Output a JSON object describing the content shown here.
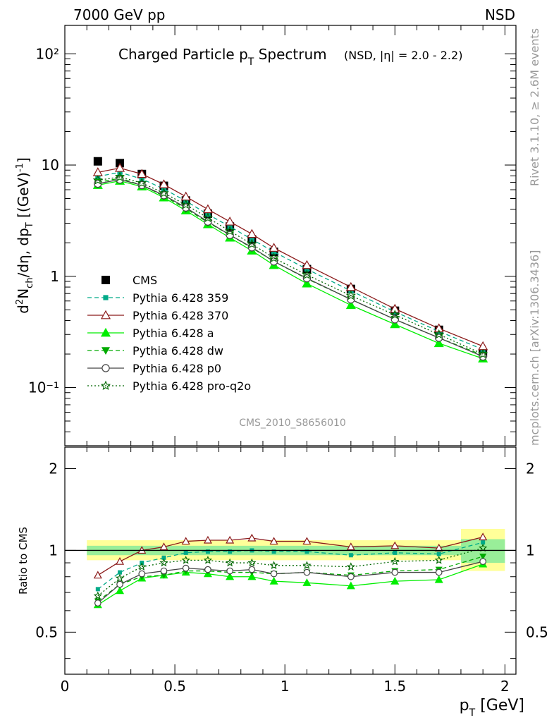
{
  "header": {
    "left": "7000 GeV pp",
    "right": "NSD"
  },
  "side": {
    "rivet": "Rivet 3.1.10, ≥ 2.6M events",
    "mcplots": "mcplots.cern.ch [arXiv:1306.3436]"
  },
  "title": {
    "main_a": "Charged Particle p",
    "main_sub": "T",
    "main_b": " Spectrum",
    "extra": "(NSD, |η| = 2.0 - 2.2)"
  },
  "analysis_tag": "CMS_2010_S8656010",
  "axes": {
    "ylabel_main": "d²N_ch/dη, dp_T [(GeV)⁻¹]",
    "ylabel_ratio": "Ratio to CMS",
    "xlabel": "p_T [GeV]",
    "xlabel_p": "p",
    "xlabel_sub": "T",
    "xlabel_unit": " [GeV]",
    "main_yticks": [
      "10⁻¹",
      "1",
      "10",
      "10²"
    ],
    "ratio_yticks": [
      "0.5",
      "1",
      "2"
    ],
    "xticks": [
      "0",
      "0.5",
      "1",
      "1.5",
      "2"
    ]
  },
  "chart_data": [
    {
      "type": "scatter",
      "panel": "main",
      "title": "Charged Particle pT Spectrum (NSD, |η| = 2.0 - 2.2)",
      "xlabel": "p_T [GeV]",
      "ylabel": "d²N_ch/dη, dp_T [(GeV)⁻¹]",
      "xlim": [
        0,
        2.05
      ],
      "ylim": [
        0.03,
        180
      ],
      "yscale": "log",
      "legend_position": "bottom-left",
      "x": [
        0.15,
        0.25,
        0.35,
        0.45,
        0.55,
        0.65,
        0.75,
        0.85,
        0.95,
        1.1,
        1.3,
        1.5,
        1.7,
        1.9
      ],
      "series": [
        {
          "name": "CMS",
          "color": "#000000",
          "marker": "square",
          "line": "none",
          "values": [
            10.8,
            10.4,
            8.3,
            6.5,
            4.8,
            3.65,
            2.8,
            2.15,
            1.66,
            1.16,
            0.77,
            0.49,
            0.33,
            0.205
          ]
        },
        {
          "name": "Pythia 6.428 359",
          "color": "#00aa88",
          "marker": "square-small",
          "line": "dashed",
          "values": [
            7.9,
            8.6,
            7.5,
            6.1,
            4.75,
            3.6,
            2.8,
            2.15,
            1.66,
            1.16,
            0.74,
            0.48,
            0.32,
            0.22
          ]
        },
        {
          "name": "Pythia 6.428 370",
          "color": "#8b1a1a",
          "marker": "triangle-open",
          "line": "solid",
          "values": [
            8.6,
            9.4,
            8.3,
            6.7,
            5.2,
            4.0,
            3.1,
            2.4,
            1.8,
            1.26,
            0.8,
            0.51,
            0.34,
            0.235
          ]
        },
        {
          "name": "Pythia 6.428 a",
          "color": "#00ee00",
          "marker": "triangle",
          "line": "solid",
          "values": [
            6.6,
            7.2,
            6.4,
            5.1,
            3.9,
            2.93,
            2.22,
            1.7,
            1.26,
            0.86,
            0.55,
            0.37,
            0.25,
            0.182
          ]
        },
        {
          "name": "Pythia 6.428 dw",
          "color": "#00aa00",
          "marker": "triangle-down",
          "line": "dashed",
          "values": [
            7.0,
            7.6,
            6.6,
            5.25,
            4.05,
            3.05,
            2.35,
            1.8,
            1.36,
            0.95,
            0.62,
            0.41,
            0.28,
            0.195
          ]
        },
        {
          "name": "Pythia 6.428 p0",
          "color": "#444444",
          "marker": "circle-open",
          "line": "solid",
          "values": [
            6.8,
            7.4,
            6.6,
            5.35,
            4.15,
            3.1,
            2.35,
            1.82,
            1.36,
            0.96,
            0.62,
            0.41,
            0.28,
            0.19
          ]
        },
        {
          "name": "Pythia 6.428 pro-q2o",
          "color": "#006600",
          "marker": "star-open",
          "line": "dotted",
          "values": [
            7.3,
            7.8,
            6.9,
            5.6,
            4.4,
            3.35,
            2.55,
            1.95,
            1.46,
            1.03,
            0.67,
            0.45,
            0.3,
            0.2
          ]
        }
      ]
    },
    {
      "type": "scatter",
      "panel": "ratio",
      "xlabel": "p_T [GeV]",
      "ylabel": "Ratio to CMS",
      "xlim": [
        0,
        2.05
      ],
      "ylim": [
        0.35,
        2.4
      ],
      "yscale": "log",
      "reference_line": 1,
      "x": [
        0.15,
        0.25,
        0.35,
        0.45,
        0.55,
        0.65,
        0.75,
        0.85,
        0.95,
        1.1,
        1.3,
        1.5,
        1.7,
        1.9
      ],
      "uncertainty_bands": {
        "edges": [
          0.1,
          1.8,
          2.0
        ],
        "stat_low": [
          0.96,
          0.9
        ],
        "stat_high": [
          1.04,
          1.1
        ],
        "total_low": [
          0.92,
          0.84
        ],
        "total_high": [
          1.09,
          1.2
        ],
        "stat_color": "#99ee99",
        "total_color": "#ffff99"
      },
      "series": [
        {
          "name": "Pythia 6.428 359",
          "color": "#00aa88",
          "marker": "square-small",
          "line": "dashed",
          "values": [
            0.72,
            0.83,
            0.9,
            0.94,
            0.98,
            0.99,
            0.99,
            1.0,
            0.99,
            0.99,
            0.96,
            0.98,
            0.97,
            1.07
          ]
        },
        {
          "name": "Pythia 6.428 370",
          "color": "#8b1a1a",
          "marker": "triangle-open",
          "line": "solid",
          "values": [
            0.81,
            0.91,
            1.0,
            1.03,
            1.08,
            1.09,
            1.09,
            1.11,
            1.08,
            1.08,
            1.03,
            1.04,
            1.02,
            1.12
          ]
        },
        {
          "name": "Pythia 6.428 a",
          "color": "#00ee00",
          "marker": "triangle",
          "line": "solid",
          "values": [
            0.63,
            0.71,
            0.79,
            0.81,
            0.83,
            0.82,
            0.8,
            0.8,
            0.77,
            0.76,
            0.74,
            0.77,
            0.78,
            0.89
          ]
        },
        {
          "name": "Pythia 6.428 dw",
          "color": "#00aa00",
          "marker": "triangle-down",
          "line": "dashed",
          "values": [
            0.65,
            0.75,
            0.8,
            0.81,
            0.84,
            0.84,
            0.83,
            0.83,
            0.82,
            0.83,
            0.81,
            0.84,
            0.85,
            0.95
          ]
        },
        {
          "name": "Pythia 6.428 p0",
          "color": "#444444",
          "marker": "circle-open",
          "line": "solid",
          "values": [
            0.64,
            0.75,
            0.82,
            0.84,
            0.86,
            0.85,
            0.84,
            0.85,
            0.82,
            0.83,
            0.8,
            0.83,
            0.83,
            0.91
          ]
        },
        {
          "name": "Pythia 6.428 pro-q2o",
          "color": "#006600",
          "marker": "star-open",
          "line": "dotted",
          "values": [
            0.68,
            0.79,
            0.87,
            0.9,
            0.92,
            0.92,
            0.9,
            0.9,
            0.88,
            0.88,
            0.87,
            0.91,
            0.92,
            1.02
          ]
        }
      ]
    }
  ]
}
